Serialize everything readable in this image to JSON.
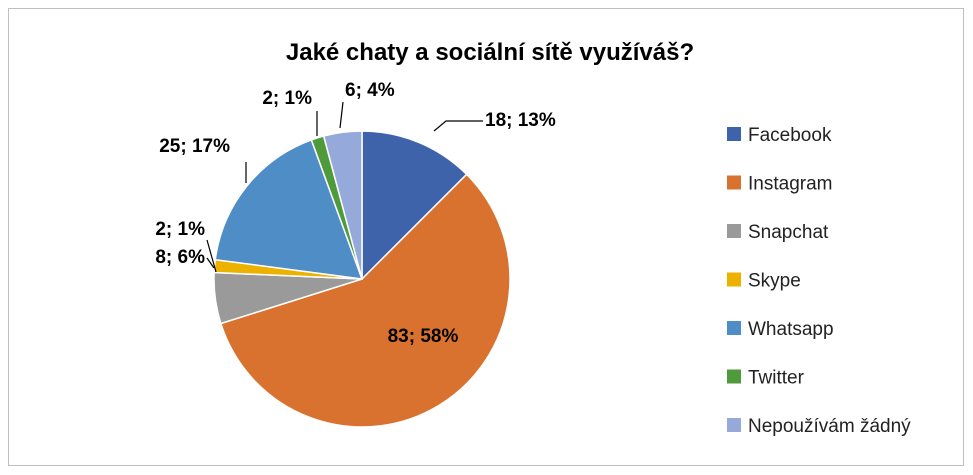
{
  "chart_data": {
    "type": "pie",
    "title": "Jaké chaty a sociální sítě využíváš?",
    "categories": [
      "Facebook",
      "Instagram",
      "Snapchat",
      "Skype",
      "Whatsapp",
      "Twitter",
      "Nepoužívám žádný"
    ],
    "values": [
      18,
      83,
      8,
      2,
      25,
      2,
      6
    ],
    "data_labels": [
      "18; 13%",
      "83; 58%",
      "8; 6%",
      "2; 1%",
      "25; 17%",
      "2; 1%",
      "6; 4%"
    ],
    "colors": [
      "#3F63AA",
      "#D9722E",
      "#9A9A9A",
      "#EDB100",
      "#4F8DC6",
      "#4F9A3A",
      "#95A9DB"
    ],
    "legend_position": "right"
  }
}
